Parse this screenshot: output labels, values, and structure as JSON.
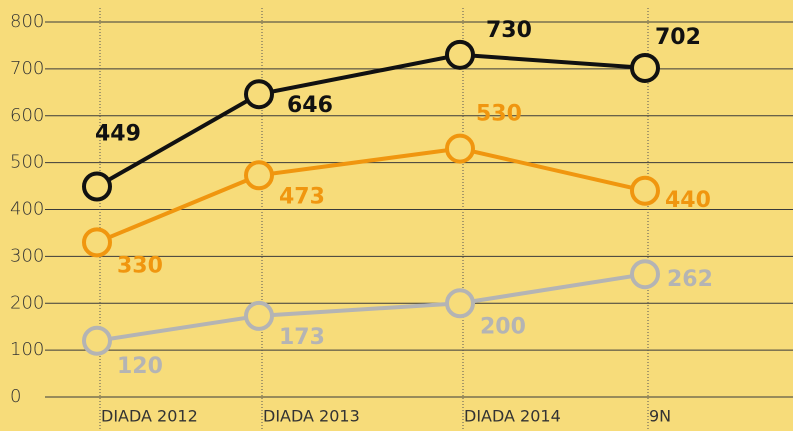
{
  "chart_data": {
    "type": "line",
    "categories": [
      "DIADA 2012",
      "DIADA 2013",
      "DIADA 2014",
      "9N"
    ],
    "series": [
      {
        "color": "#111111",
        "values": [
          449,
          646,
          730,
          702
        ]
      },
      {
        "color": "#f0960f",
        "values": [
          330,
          473,
          530,
          440
        ]
      },
      {
        "color": "#b4b4b4",
        "values": [
          120,
          173,
          200,
          262
        ]
      }
    ],
    "ylim": [
      0,
      800
    ],
    "yticks": [
      0,
      100,
      200,
      300,
      400,
      500,
      600,
      700,
      800
    ],
    "grid": true
  }
}
